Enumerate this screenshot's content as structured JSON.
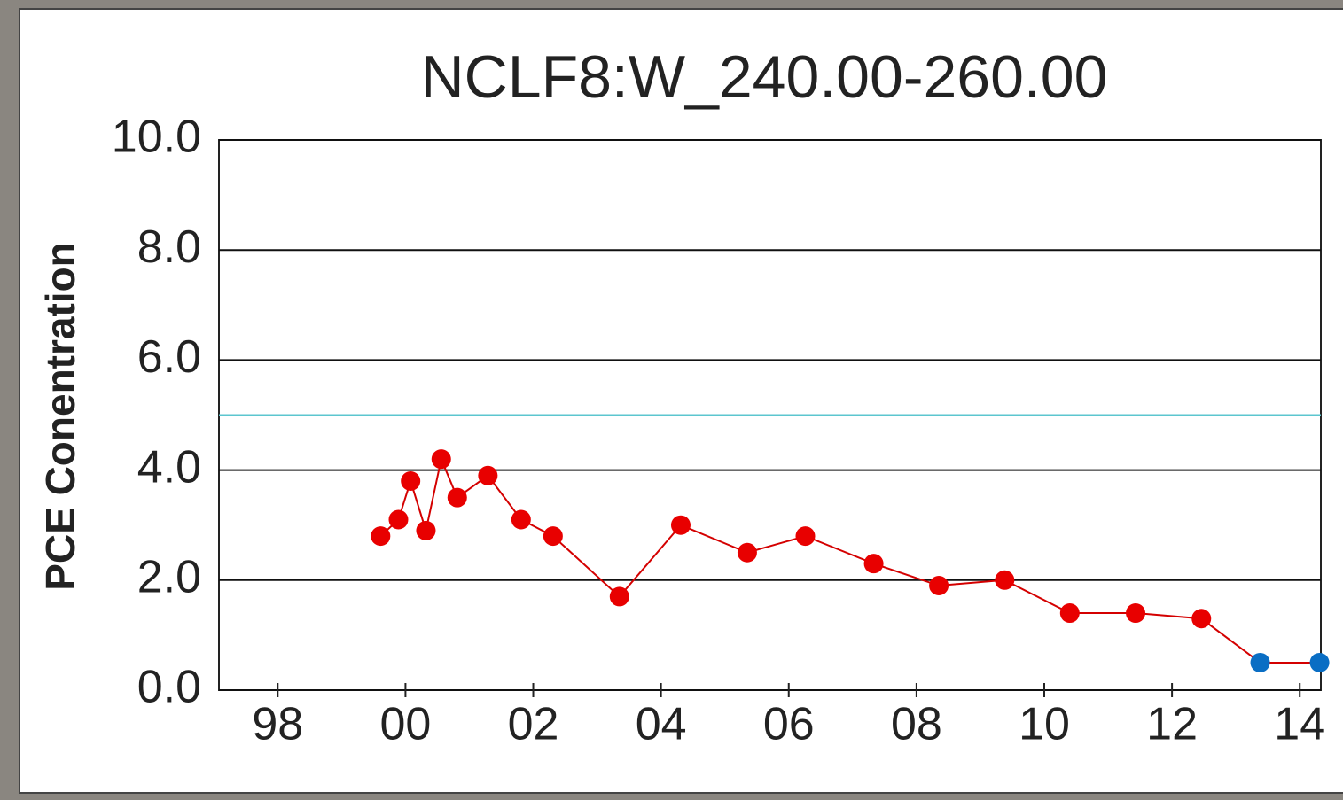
{
  "chart_data": {
    "type": "line",
    "title": "NCLF8:W_240.00-260.00",
    "y_label": "PCE Conentration",
    "x": [
      1999.61,
      1999.89,
      2000.08,
      2000.32,
      2000.56,
      2000.81,
      2001.29,
      2001.81,
      2002.31,
      2003.35,
      2004.31,
      2005.35,
      2006.26,
      2007.33,
      2008.35,
      2009.38,
      2010.4,
      2011.43,
      2012.46,
      2013.38,
      2014.31
    ],
    "series": [
      {
        "color": "#d40000",
        "values": [
          2.8,
          3.1,
          3.8,
          2.9,
          4.2,
          3.5,
          3.9,
          3.1,
          2.8,
          1.7,
          3.0,
          2.5,
          2.8,
          2.3,
          1.9,
          2.0,
          1.4,
          1.4,
          1.3,
          0.5,
          0.5
        ],
        "marker_colors": [
          "#e80000",
          "#e80000",
          "#e80000",
          "#e80000",
          "#e80000",
          "#e80000",
          "#e80000",
          "#e80000",
          "#e80000",
          "#e80000",
          "#e80000",
          "#e80000",
          "#e80000",
          "#e80000",
          "#e80000",
          "#e80000",
          "#e80000",
          "#e80000",
          "#e80000",
          "#0a6ec4",
          "#0a6ec4"
        ]
      }
    ],
    "reference_line": {
      "value": 5,
      "color": "#5cc6cf"
    },
    "xlim": [
      1997.08,
      2014.33
    ],
    "xticks": [
      {
        "value": 1998,
        "label": "98"
      },
      {
        "value": 2000,
        "label": "00"
      },
      {
        "value": 2002,
        "label": "02"
      },
      {
        "value": 2004,
        "label": "04"
      },
      {
        "value": 2006,
        "label": "06"
      },
      {
        "value": 2008,
        "label": "08"
      },
      {
        "value": 2010,
        "label": "10"
      },
      {
        "value": 2012,
        "label": "12"
      },
      {
        "value": 2014,
        "label": "14"
      }
    ],
    "ylim": [
      0,
      10
    ],
    "yticks": [
      {
        "value": 0,
        "label": "0.0"
      },
      {
        "value": 2,
        "label": "2.0"
      },
      {
        "value": 4,
        "label": "4.0"
      },
      {
        "value": 6,
        "label": "6.0"
      },
      {
        "value": 8,
        "label": "8.0"
      },
      {
        "value": 10,
        "label": "10.0"
      }
    ],
    "grid": true
  }
}
